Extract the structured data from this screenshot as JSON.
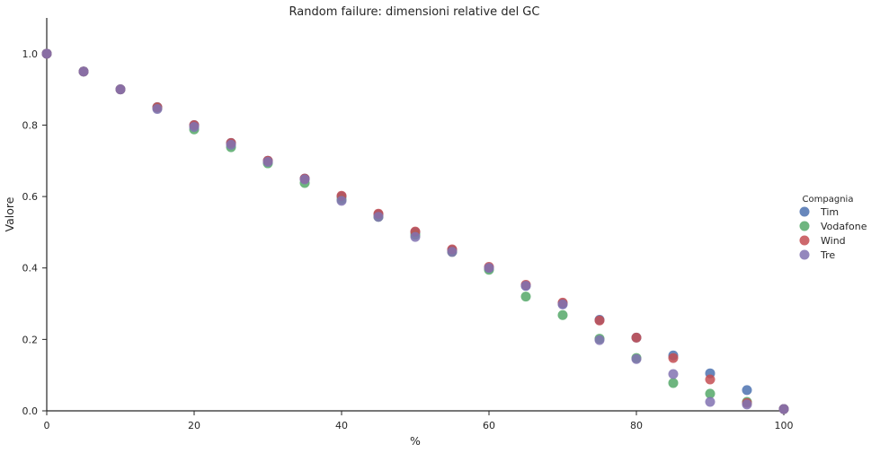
{
  "chart_data": {
    "type": "scatter",
    "title": "Random failure: dimensioni relative del GC",
    "xlabel": "%",
    "ylabel": "Valore",
    "xlim": [
      0,
      100
    ],
    "ylim": [
      0,
      1.1
    ],
    "xticks": [
      0,
      20,
      40,
      60,
      80,
      100
    ],
    "yticks": [
      0.0,
      0.2,
      0.4,
      0.6,
      0.8,
      1.0
    ],
    "grid": false,
    "legend": {
      "title": "Compagnia",
      "placement": "right"
    },
    "x": [
      0,
      5,
      10,
      15,
      20,
      25,
      30,
      35,
      40,
      45,
      50,
      55,
      60,
      65,
      70,
      75,
      80,
      85,
      90,
      95,
      100
    ],
    "series": [
      {
        "name": "Tim",
        "color": "#4c72b0",
        "values": [
          1.0,
          0.95,
          0.9,
          0.85,
          0.8,
          0.75,
          0.7,
          0.65,
          0.6,
          0.55,
          0.5,
          0.45,
          0.4,
          0.35,
          0.3,
          0.255,
          0.205,
          0.155,
          0.105,
          0.058,
          0.005
        ]
      },
      {
        "name": "Vodafone",
        "color": "#55a868",
        "values": [
          1.0,
          0.95,
          0.9,
          0.848,
          0.788,
          0.738,
          0.693,
          0.638,
          0.592,
          0.543,
          0.493,
          0.445,
          0.395,
          0.32,
          0.268,
          0.202,
          0.148,
          0.078,
          0.048,
          0.025,
          0.005
        ]
      },
      {
        "name": "Wind",
        "color": "#c44e52",
        "values": [
          1.0,
          0.95,
          0.9,
          0.85,
          0.8,
          0.75,
          0.7,
          0.65,
          0.602,
          0.552,
          0.502,
          0.452,
          0.403,
          0.353,
          0.303,
          0.253,
          0.205,
          0.148,
          0.088,
          0.022,
          0.005
        ]
      },
      {
        "name": "Tre",
        "color": "#8172b2",
        "values": [
          1.0,
          0.95,
          0.9,
          0.845,
          0.795,
          0.745,
          0.697,
          0.648,
          0.588,
          0.543,
          0.487,
          0.445,
          0.4,
          0.35,
          0.298,
          0.198,
          0.145,
          0.103,
          0.025,
          0.018,
          0.005
        ]
      }
    ]
  }
}
